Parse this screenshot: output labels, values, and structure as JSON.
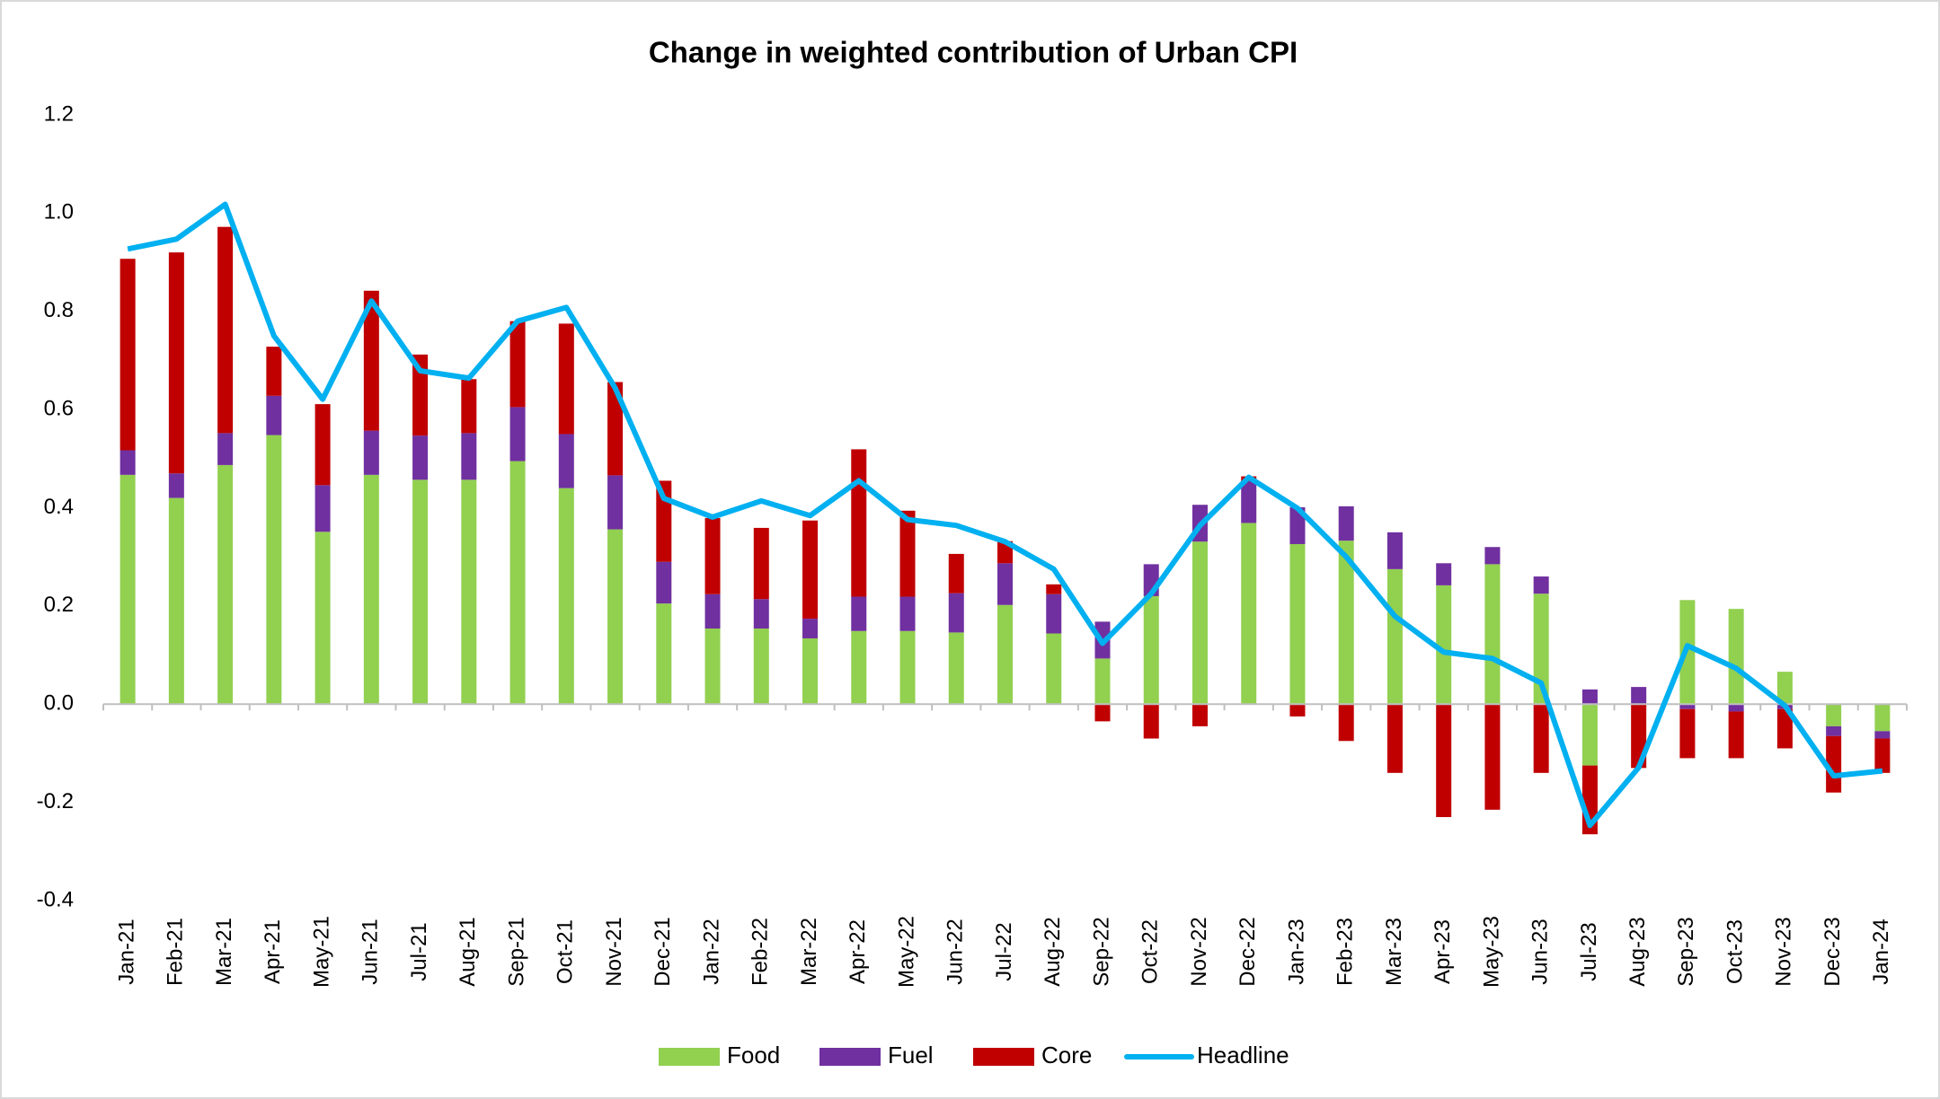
{
  "chart_data": {
    "type": "bar",
    "title": "Change in weighted contribution of Urban CPI",
    "categories": [
      "Jan-21",
      "Feb-21",
      "Mar-21",
      "Apr-21",
      "May-21",
      "Jun-21",
      "Jul-21",
      "Aug-21",
      "Sep-21",
      "Oct-21",
      "Nov-21",
      "Dec-21",
      "Jan-22",
      "Feb-22",
      "Mar-22",
      "Apr-22",
      "May-22",
      "Jun-22",
      "Jul-22",
      "Aug-22",
      "Sep-22",
      "Oct-22",
      "Nov-22",
      "Dec-22",
      "Jan-23",
      "Feb-23",
      "Mar-23",
      "Apr-23",
      "May-23",
      "Jun-23",
      "Jul-23",
      "Aug-23",
      "Sep-23",
      "Oct-23",
      "Nov-23",
      "Dec-23",
      "Jan-24"
    ],
    "series": [
      {
        "name": "Food",
        "type": "bar",
        "color": "#92d050",
        "values": [
          0.467,
          0.42,
          0.487,
          0.548,
          0.351,
          0.467,
          0.457,
          0.457,
          0.495,
          0.44,
          0.356,
          0.205,
          0.154,
          0.154,
          0.134,
          0.149,
          0.149,
          0.146,
          0.202,
          0.144,
          0.093,
          0.22,
          0.331,
          0.369,
          0.326,
          0.333,
          0.275,
          0.242,
          0.285,
          0.225,
          -0.125,
          0,
          0.212,
          0.194,
          0.066,
          -0.045,
          -0.055
        ]
      },
      {
        "name": "Fuel",
        "type": "bar",
        "color": "#7030a0",
        "values": [
          0.05,
          0.05,
          0.065,
          0.08,
          0.095,
          0.09,
          0.09,
          0.095,
          0.11,
          0.11,
          0.11,
          0.085,
          0.07,
          0.06,
          0.04,
          0.07,
          0.07,
          0.08,
          0.085,
          0.08,
          0.075,
          0.065,
          0.075,
          0.085,
          0.075,
          0.07,
          0.075,
          0.045,
          0.035,
          0.035,
          0.03,
          0.035,
          -0.01,
          -0.015,
          -0.01,
          -0.02,
          -0.015
        ]
      },
      {
        "name": "Core",
        "type": "bar",
        "color": "#c00000",
        "values": [
          0.39,
          0.45,
          0.42,
          0.1,
          0.165,
          0.285,
          0.165,
          0.11,
          0.175,
          0.225,
          0.19,
          0.165,
          0.155,
          0.145,
          0.2,
          0.3,
          0.175,
          0.08,
          0.045,
          0.02,
          -0.035,
          -0.07,
          -0.045,
          0.01,
          -0.025,
          -0.075,
          -0.14,
          -0.23,
          -0.215,
          -0.14,
          -0.14,
          -0.13,
          -0.1,
          -0.095,
          -0.08,
          -0.115,
          -0.07
        ]
      },
      {
        "name": "Headline",
        "type": "line",
        "color": "#00b0f0",
        "values": [
          0.927,
          0.947,
          1.018,
          0.75,
          0.621,
          0.821,
          0.679,
          0.664,
          0.78,
          0.808,
          0.644,
          0.419,
          0.381,
          0.414,
          0.384,
          0.455,
          0.376,
          0.364,
          0.331,
          0.275,
          0.124,
          0.225,
          0.364,
          0.462,
          0.399,
          0.3,
          0.179,
          0.106,
          0.093,
          0.043,
          -0.247,
          -0.129,
          0.119,
          0.073,
          -0.003,
          -0.146,
          -0.136
        ]
      }
    ],
    "ylim": [
      -0.4,
      1.2
    ],
    "yticks": [
      {
        "value": -0.4,
        "label": "-0.4"
      },
      {
        "value": -0.2,
        "label": "-0.2"
      },
      {
        "value": 0,
        "label": "0.0"
      },
      {
        "value": 0.2,
        "label": "0.2"
      },
      {
        "value": 0.4,
        "label": "0.4"
      },
      {
        "value": 0.6,
        "label": "0.6"
      },
      {
        "value": 0.8,
        "label": "0.8"
      },
      {
        "value": 1.0,
        "label": "1.0"
      },
      {
        "value": 1.2,
        "label": "1.2"
      }
    ],
    "grid": false,
    "legend": "bottom"
  }
}
